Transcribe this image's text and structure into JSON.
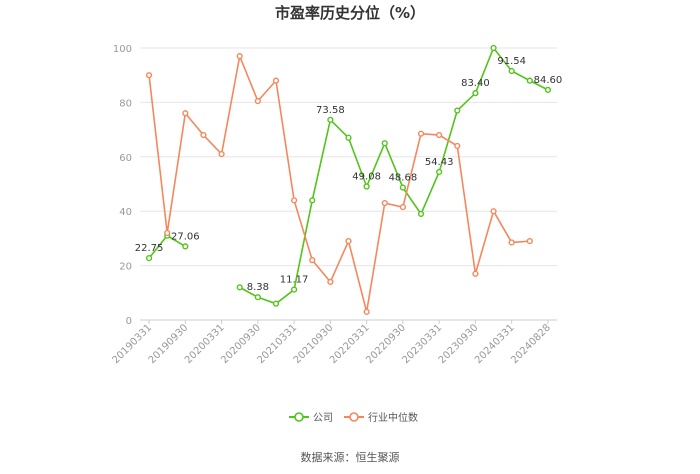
{
  "chart_data": {
    "type": "line",
    "title": "市盈率历史分位（%）",
    "ylim": [
      0,
      100
    ],
    "y_ticks": [
      0,
      20,
      40,
      60,
      80,
      100
    ],
    "grid": true,
    "legend_position": "bottom",
    "x": [
      "20190331",
      "20190630",
      "20190930",
      "20191231",
      "20200331",
      "20200630",
      "20200930",
      "20201231",
      "20210331",
      "20210630",
      "20210930",
      "20211231",
      "20220331",
      "20220630",
      "20220930",
      "20221231",
      "20230331",
      "20230630",
      "20230930",
      "20231231",
      "20240331",
      "20240630",
      "20240828"
    ],
    "x_tick_labels": [
      "20190331",
      "20190930",
      "20200331",
      "20200930",
      "20210331",
      "20210930",
      "20220331",
      "20220930",
      "20230331",
      "20230930",
      "20240331",
      "20240828"
    ],
    "series": [
      {
        "name": "公司",
        "color": "#52c41a",
        "values": [
          22.75,
          31,
          27.06,
          null,
          null,
          12,
          8.38,
          6,
          11.17,
          44,
          73.58,
          67,
          49.08,
          65,
          48.68,
          39,
          54.43,
          77,
          83.4,
          100,
          91.54,
          88,
          84.6
        ]
      },
      {
        "name": "行业中位数",
        "color": "#f5875c",
        "values": [
          90,
          32,
          76,
          68,
          61,
          97,
          80.5,
          88,
          44,
          22,
          14,
          29,
          3,
          43,
          41.5,
          68.5,
          68,
          64,
          17,
          40,
          28.5,
          29,
          null
        ]
      }
    ],
    "data_labels": [
      {
        "series": 0,
        "index": 0,
        "text": "22.75"
      },
      {
        "series": 0,
        "index": 2,
        "text": "27.06"
      },
      {
        "series": 0,
        "index": 6,
        "text": "8.38"
      },
      {
        "series": 0,
        "index": 8,
        "text": "11.17"
      },
      {
        "series": 0,
        "index": 10,
        "text": "73.58"
      },
      {
        "series": 0,
        "index": 12,
        "text": "49.08"
      },
      {
        "series": 0,
        "index": 14,
        "text": "48.68"
      },
      {
        "series": 0,
        "index": 16,
        "text": "54.43"
      },
      {
        "series": 0,
        "index": 18,
        "text": "83.40"
      },
      {
        "series": 0,
        "index": 20,
        "text": "91.54"
      },
      {
        "series": 0,
        "index": 22,
        "text": "84.60"
      }
    ]
  },
  "source_text": "数据来源：恒生聚源"
}
